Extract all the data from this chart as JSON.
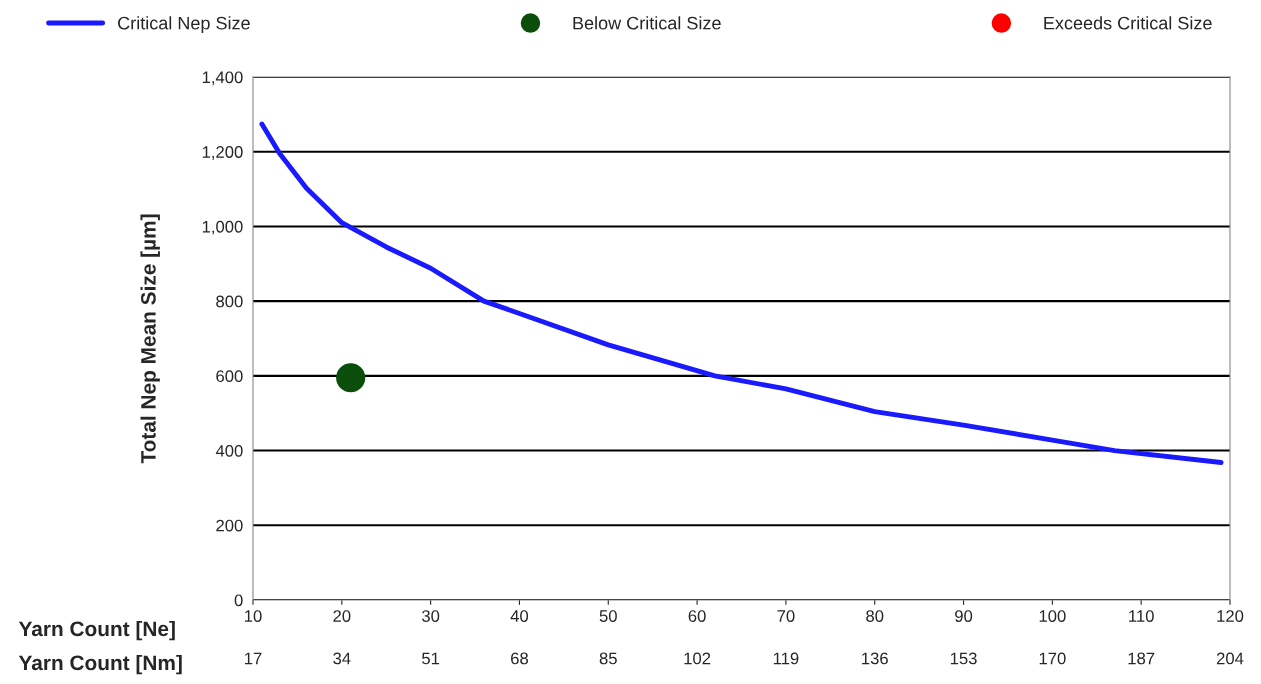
{
  "chart_data": {
    "type": "line",
    "xlabel": "Yarn Count [Ne]",
    "x2label": "Yarn Count [Nm]",
    "ylabel": "Total Nep Mean Size [µm]",
    "xlim": [
      10,
      120
    ],
    "xticks": [
      10,
      20,
      30,
      40,
      50,
      60,
      70,
      80,
      90,
      100,
      110,
      120
    ],
    "x2lim": [
      17,
      204
    ],
    "x2ticks": [
      17,
      34,
      51,
      68,
      85,
      102,
      119,
      136,
      153,
      170,
      187,
      204
    ],
    "ylim": [
      0,
      1400
    ],
    "yticks": [
      0,
      200,
      400,
      600,
      800,
      {
        "value": 1000,
        "label": "1,000"
      },
      {
        "value": 1200,
        "label": "1,200"
      },
      {
        "value": 1400,
        "label": "1,400"
      }
    ],
    "grid": "y",
    "legend": "top",
    "tick_labels": "xy",
    "series": [
      {
        "name": "Critical Nep Size",
        "color": "#1a1aff",
        "marker": "none",
        "x": [
          11,
          13,
          16,
          20,
          25,
          30,
          36,
          40,
          50,
          62,
          70,
          80,
          90,
          100,
          107,
          119
        ],
        "values": [
          1274,
          1195,
          1103,
          1010,
          945,
          888,
          800,
          767,
          683,
          600,
          565,
          504,
          468,
          428,
          400,
          368
        ]
      },
      {
        "name": "Below Critical Size",
        "type": "scatter",
        "color": "#0b4d0b",
        "marker": "circle",
        "x": [
          21
        ],
        "values": [
          595
        ]
      },
      {
        "name": "Exceeds Critical Size",
        "type": "scatter",
        "color": "#ff0000",
        "marker": "circle"
      }
    ]
  }
}
